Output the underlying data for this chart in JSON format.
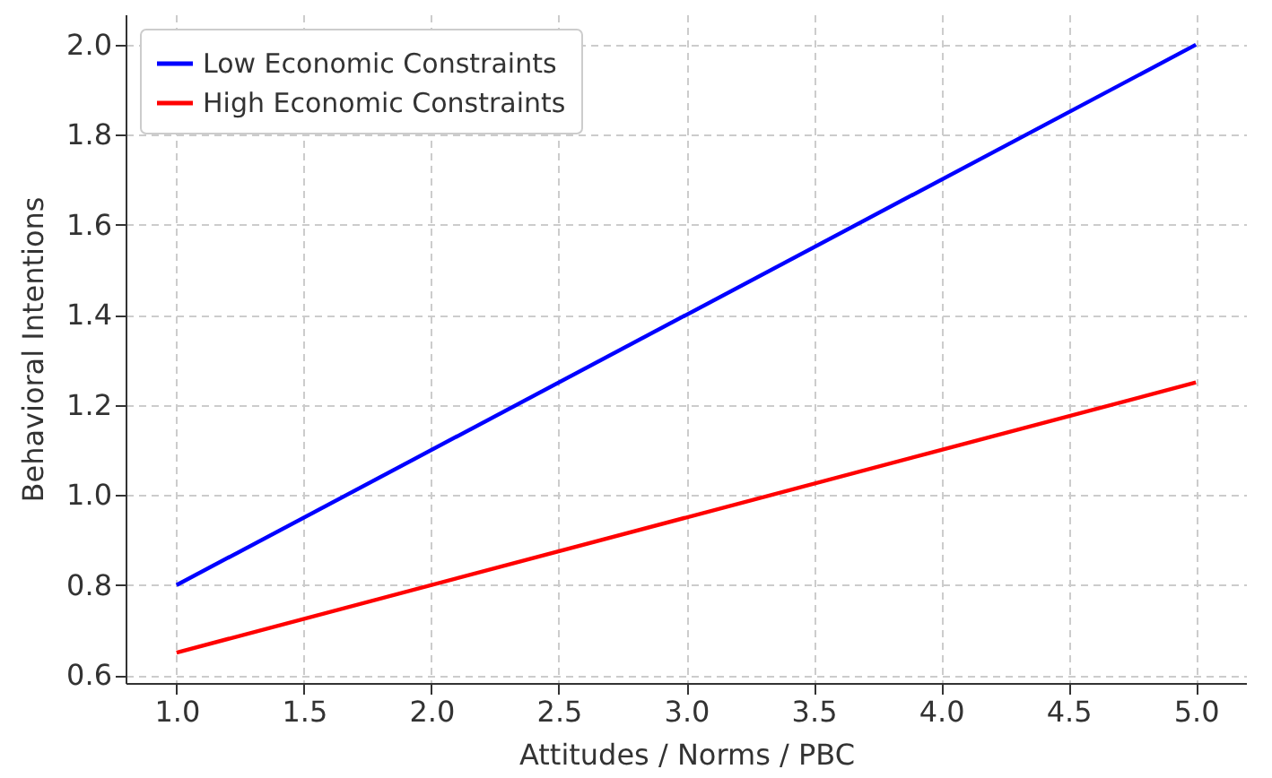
{
  "chart_data": {
    "type": "line",
    "xlabel": "Attitudes / Norms / PBC",
    "ylabel": "Behavioral Intentions",
    "x": [
      1,
      5
    ],
    "series": [
      {
        "name": "Low Economic Constraints",
        "color": "#0000ff",
        "values": [
          0.8,
          2.0
        ]
      },
      {
        "name": "High Economic Constraints",
        "color": "#ff0000",
        "values": [
          0.65,
          1.25
        ]
      }
    ],
    "xlim": [
      0.8,
      5.2
    ],
    "xticks": [
      {
        "value": 1,
        "label": "1.0"
      },
      1.5,
      {
        "value": 2,
        "label": "2.0"
      },
      2.5,
      {
        "value": 3,
        "label": "3.0"
      },
      3.5,
      {
        "value": 4,
        "label": "4.0"
      },
      4.5,
      {
        "value": 5,
        "label": "5.0"
      }
    ],
    "ylim": [
      0.5825,
      2.0675
    ],
    "yticks": [
      0.6,
      0.8,
      {
        "value": 1,
        "label": "1.0"
      },
      1.2,
      1.4,
      1.6,
      1.8,
      {
        "value": 2,
        "label": "2.0"
      }
    ],
    "grid": true,
    "legend": "top left",
    "line_style": "solid",
    "marker": "none"
  }
}
